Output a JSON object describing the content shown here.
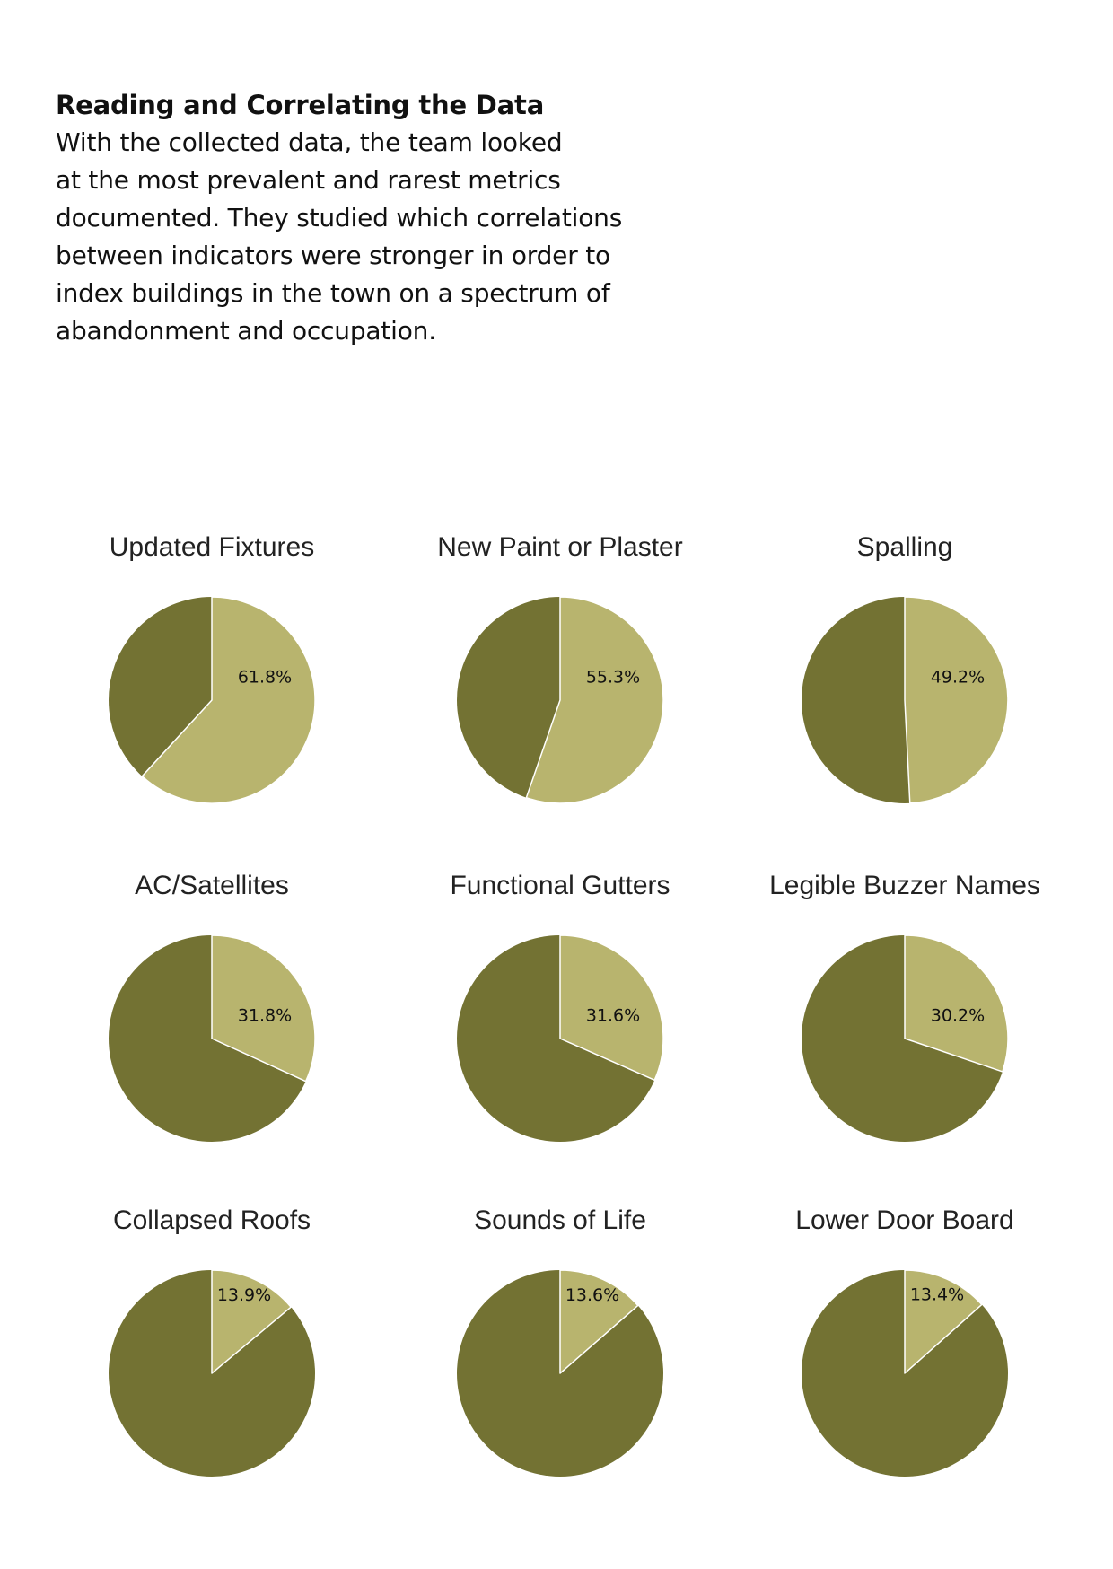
{
  "intro": {
    "heading": "Reading and Correlating the Data",
    "body_lines": [
      "With the collected data, the team looked",
      "at the most prevalent and rarest metrics",
      "documented. They studied which correlations",
      "between indicators were stronger in order to",
      "index buildings in the town on a spectrum of",
      "abandonment and occupation."
    ]
  },
  "colors": {
    "highlight": "#b8b46e",
    "remainder": "#737233",
    "separator": "#ffffff"
  },
  "chart_data": [
    {
      "type": "pie",
      "title": "Updated Fixtures",
      "value": 61.8,
      "label": "61.8%"
    },
    {
      "type": "pie",
      "title": "New Paint or Plaster",
      "value": 55.3,
      "label": "55.3%"
    },
    {
      "type": "pie",
      "title": "Spalling",
      "value": 49.2,
      "label": "49.2%"
    },
    {
      "type": "pie",
      "title": "AC/Satellites",
      "value": 31.8,
      "label": "31.8%"
    },
    {
      "type": "pie",
      "title": "Functional Gutters",
      "value": 31.6,
      "label": "31.6%"
    },
    {
      "type": "pie",
      "title": "Legible Buzzer Names",
      "value": 30.2,
      "label": "30.2%"
    },
    {
      "type": "pie",
      "title": "Collapsed Roofs",
      "value": 13.9,
      "label": "13.9%"
    },
    {
      "type": "pie",
      "title": "Sounds of Life",
      "value": 13.6,
      "label": "13.6%"
    },
    {
      "type": "pie",
      "title": "Lower Door Board",
      "value": 13.4,
      "label": "13.4%"
    }
  ]
}
